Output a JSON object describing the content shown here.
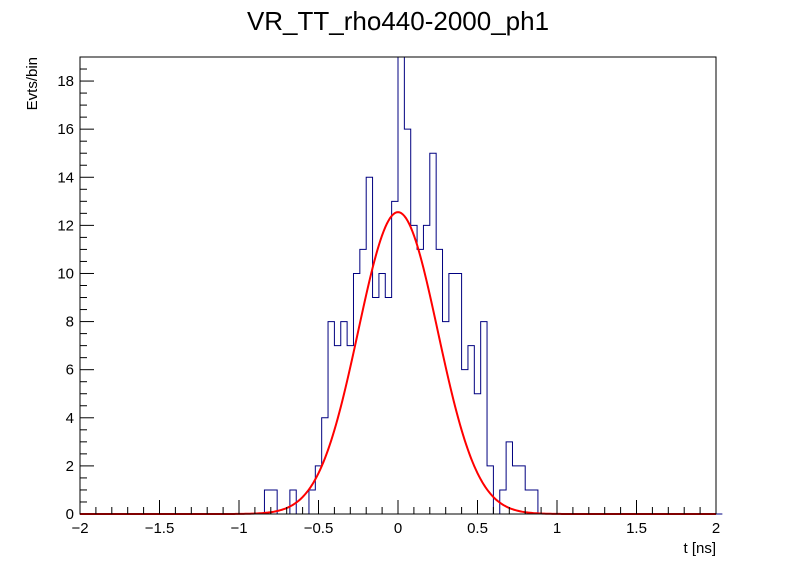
{
  "chart_data": {
    "type": "bar",
    "title": "VR_TT_rho440-2000_ph1",
    "xlabel": "t [ns]",
    "ylabel": "Evts/bin",
    "xlim": [
      -2,
      2
    ],
    "ylim": [
      0,
      19
    ],
    "x_ticks": [
      -2,
      -1.5,
      -1,
      -0.5,
      0,
      0.5,
      1,
      1.5,
      2
    ],
    "x_tick_labels": [
      "−2",
      "−1.5",
      "−1",
      "−0.5",
      "0",
      "0.5",
      "1",
      "1.5",
      "2"
    ],
    "y_ticks": [
      0,
      2,
      4,
      6,
      8,
      10,
      12,
      14,
      16,
      18
    ],
    "y_tick_labels": [
      "0",
      "2",
      "4",
      "6",
      "8",
      "10",
      "12",
      "14",
      "16",
      "18"
    ],
    "grid": false,
    "legend": "none",
    "series": [
      {
        "name": "histogram",
        "kind": "step",
        "color": "#000080",
        "bin_edges_start": -2,
        "bin_width": 0.04,
        "values": [
          0,
          0,
          0,
          0,
          0,
          0,
          0,
          0,
          0,
          0,
          0,
          0,
          0,
          0,
          0,
          0,
          0,
          0,
          0,
          0,
          0,
          0,
          0,
          0,
          0,
          0,
          0,
          0,
          0,
          1,
          1,
          0,
          0,
          1,
          0,
          0,
          1,
          2,
          4,
          8,
          7,
          8,
          7,
          10,
          11,
          14,
          9,
          10,
          9,
          13,
          19,
          16,
          12,
          11,
          12,
          15,
          11,
          8,
          10,
          10,
          6,
          7,
          5,
          8,
          2,
          0,
          1,
          3,
          2,
          2,
          1,
          1,
          0,
          0,
          0,
          0,
          0,
          0,
          0,
          0,
          0,
          0,
          0,
          0,
          0,
          0,
          0,
          0,
          0,
          0,
          0,
          0,
          0,
          0,
          0,
          0,
          0,
          0,
          0,
          0,
          0
        ]
      },
      {
        "name": "gaussian fit",
        "kind": "line",
        "color": "#ff0000",
        "amplitude": 12.55,
        "mean": 0.0,
        "sigma": 0.25
      }
    ]
  }
}
